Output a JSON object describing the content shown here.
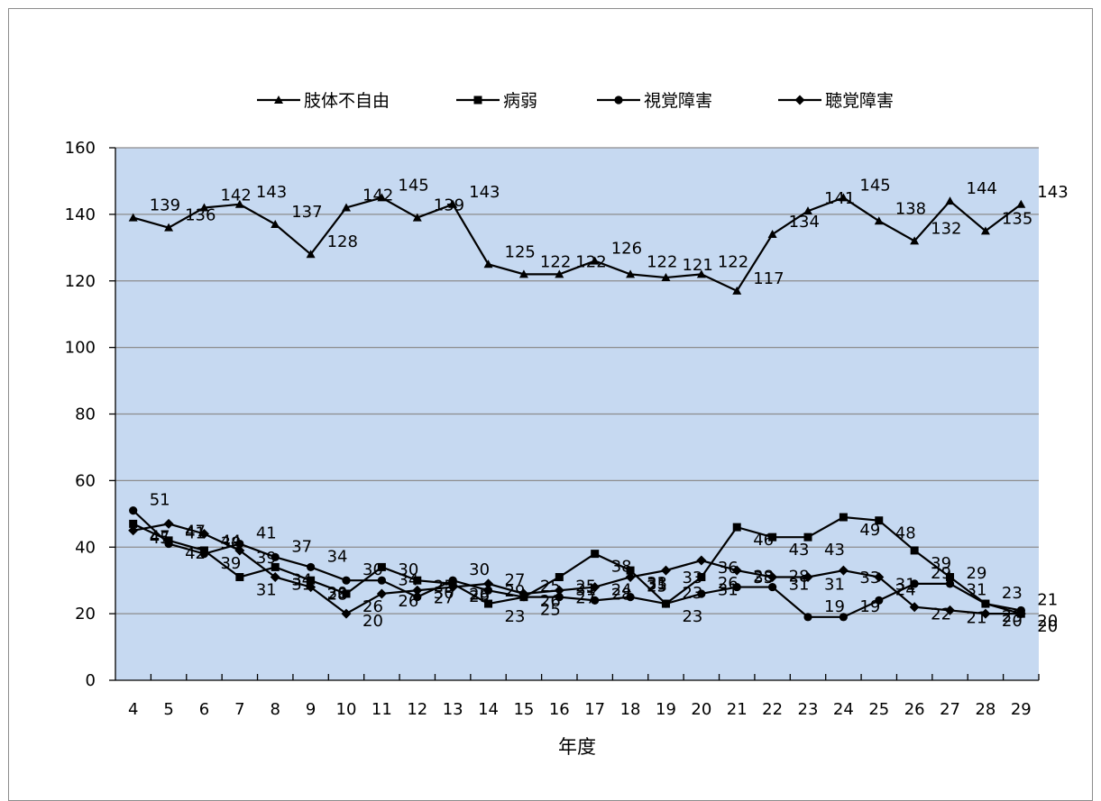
{
  "chart_data": {
    "type": "line",
    "categories": [
      "4",
      "5",
      "6",
      "7",
      "8",
      "9",
      "10",
      "11",
      "12",
      "13",
      "14",
      "15",
      "16",
      "17",
      "18",
      "19",
      "20",
      "21",
      "22",
      "23",
      "24",
      "25",
      "26",
      "27",
      "28",
      "29"
    ],
    "xlabel": "年度",
    "ylabel": "",
    "ylim": [
      0,
      160
    ],
    "yticks": [
      0,
      20,
      40,
      60,
      80,
      100,
      120,
      140,
      160
    ],
    "grid": true,
    "legend": "top",
    "plot_background": "#c6d9f1",
    "series": [
      {
        "name": "肢体不自由",
        "marker": "triangle",
        "values": [
          139,
          136,
          142,
          143,
          137,
          128,
          142,
          145,
          139,
          143,
          125,
          122,
          122,
          126,
          122,
          121,
          122,
          117,
          134,
          141,
          145,
          138,
          132,
          144,
          135,
          143
        ]
      },
      {
        "name": "病弱",
        "marker": "square",
        "values": [
          47,
          42,
          39,
          31,
          34,
          30,
          26,
          34,
          30,
          29,
          23,
          25,
          31,
          38,
          33,
          23,
          31,
          46,
          43,
          43,
          49,
          48,
          39,
          31,
          23,
          20
        ]
      },
      {
        "name": "視覚障害",
        "marker": "circle",
        "values": [
          51,
          41,
          38,
          41,
          37,
          34,
          30,
          30,
          25,
          30,
          27,
          25,
          25,
          24,
          25,
          23,
          26,
          28,
          28,
          19,
          19,
          24,
          29,
          29,
          23,
          21
        ]
      },
      {
        "name": "聴覚障害",
        "marker": "diamond",
        "values": [
          45,
          47,
          44,
          39,
          31,
          28,
          20,
          26,
          27,
          28,
          29,
          26,
          27,
          28,
          31,
          33,
          36,
          33,
          31,
          31,
          33,
          31,
          22,
          21,
          20,
          20
        ]
      }
    ]
  }
}
